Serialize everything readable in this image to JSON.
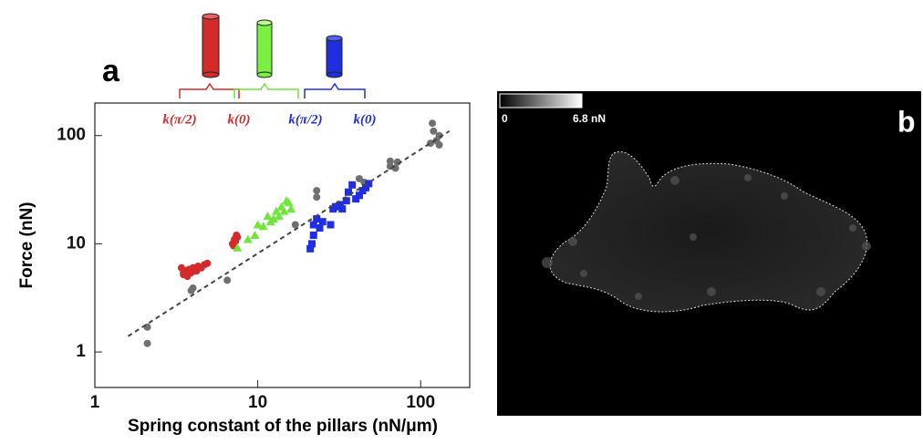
{
  "chart_data": {
    "type": "scatter",
    "panel_label": "a",
    "xlabel": "Spring constant of the pillars (nN/μm)",
    "ylabel": "Force (nN)",
    "xscale": "log",
    "yscale": "log",
    "xlim": [
      1,
      200
    ],
    "ylim": [
      0.47,
      200
    ],
    "xticks": [
      1,
      10,
      100
    ],
    "yticks": [
      1,
      10,
      100
    ],
    "series": [
      {
        "marker": "circle",
        "color": "#707070",
        "x": [
          2.1,
          2.1,
          3.9,
          4.0,
          6.5,
          17,
          23,
          23,
          42,
          45,
          65,
          65,
          70,
          72,
          118,
          120,
          125,
          115,
          130,
          130
        ],
        "values": [
          1.7,
          1.2,
          3.7,
          3.9,
          4.6,
          15,
          31,
          27,
          40,
          37,
          58,
          52,
          50,
          57,
          130,
          110,
          90,
          85,
          100,
          82
        ]
      },
      {
        "marker": "circle",
        "color": "#d42a2a",
        "x": [
          3.4,
          3.5,
          3.6,
          3.7,
          3.8,
          3.9,
          4.0,
          4.2,
          4.3,
          4.5,
          4.7,
          4.9,
          3.5,
          3.7,
          7.0,
          7.2,
          7.4,
          7.5,
          7.3,
          7.1
        ],
        "values": [
          6.0,
          5.2,
          5.6,
          5.0,
          5.8,
          5.4,
          6.0,
          5.6,
          6.2,
          6.0,
          6.4,
          6.6,
          5.4,
          5.7,
          10,
          11,
          12,
          11.5,
          10.5,
          9.6
        ]
      },
      {
        "marker": "triangle",
        "color": "#6ee63a",
        "x": [
          7.5,
          8.7,
          9.6,
          10,
          10.8,
          11.5,
          12,
          12.5,
          13,
          13.5,
          14,
          14.5,
          15,
          15.5,
          16
        ],
        "values": [
          9.2,
          11,
          12,
          15,
          14.5,
          18,
          16,
          17,
          20,
          18,
          22,
          20,
          25,
          24,
          21
        ]
      },
      {
        "marker": "square",
        "color": "#1f2ee0",
        "x": [
          21,
          21.5,
          22,
          22,
          23,
          24,
          25,
          28,
          29,
          30,
          32,
          33,
          35,
          36,
          38,
          40,
          42,
          44,
          46,
          48
        ],
        "values": [
          9,
          10,
          12,
          15,
          17,
          14,
          16,
          15,
          21,
          22,
          23,
          21,
          25,
          30,
          35,
          26,
          28,
          31,
          33,
          36
        ]
      },
      {
        "marker": "dashed-line",
        "color": "#444444",
        "x": [
          1.6,
          150
        ],
        "values": [
          1.4,
          110
        ]
      }
    ],
    "annotations": [
      {
        "text": "k(π/2)",
        "color": "#d42a2a"
      },
      {
        "text": "k(0)",
        "color": "#d42a2a"
      },
      {
        "text": "k(π/2)",
        "color": "#1f2ee0"
      },
      {
        "text": "k(0)",
        "color": "#1f2ee0"
      }
    ]
  },
  "image_panel": {
    "label": "b",
    "scale_min": "0",
    "scale_max": "6.8 nN"
  }
}
